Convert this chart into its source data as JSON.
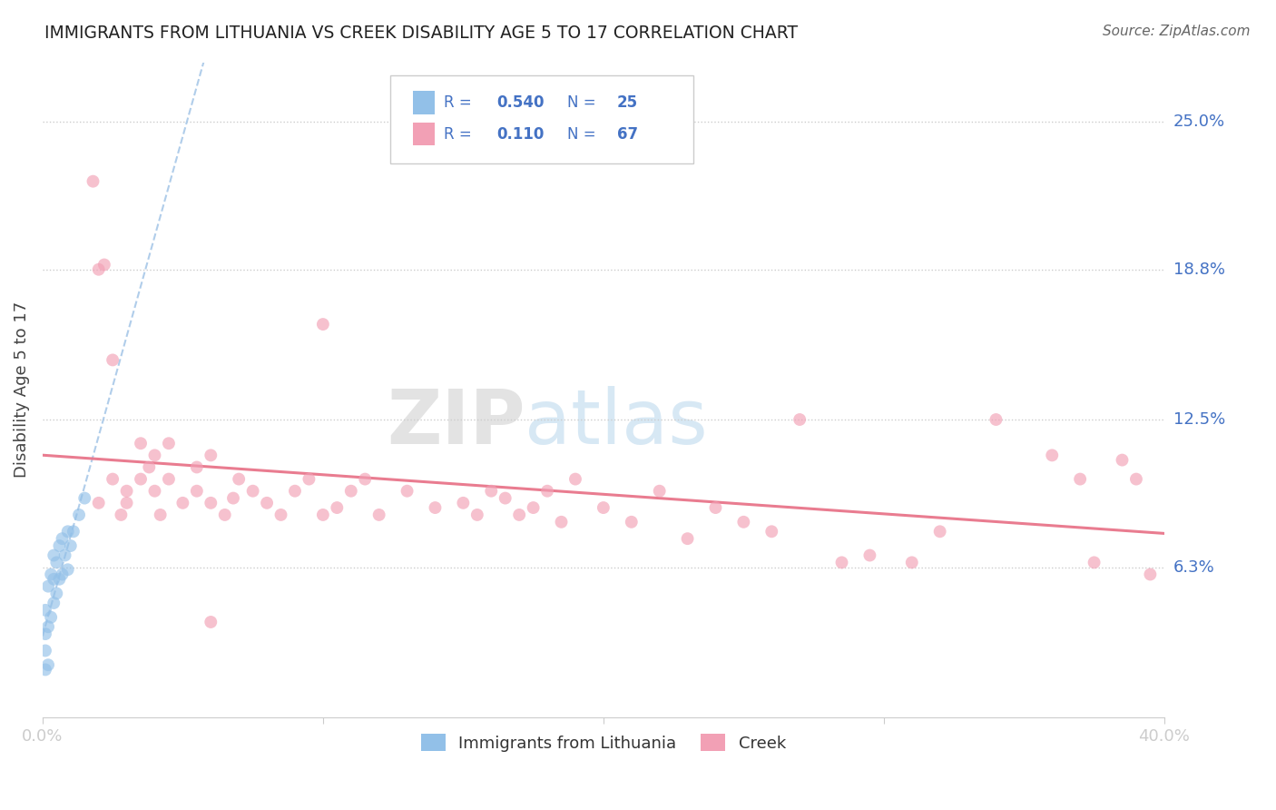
{
  "title": "IMMIGRANTS FROM LITHUANIA VS CREEK DISABILITY AGE 5 TO 17 CORRELATION CHART",
  "source": "Source: ZipAtlas.com",
  "ylabel": "Disability Age 5 to 17",
  "xlim": [
    0.0,
    0.4
  ],
  "ylim": [
    0.0,
    0.275
  ],
  "xticks": [
    0.0,
    0.1,
    0.2,
    0.3,
    0.4
  ],
  "xtick_labels": [
    "0.0%",
    "",
    "",
    "",
    "40.0%"
  ],
  "ytick_labels_right": [
    "6.3%",
    "12.5%",
    "18.8%",
    "25.0%"
  ],
  "ytick_values_right": [
    0.063,
    0.125,
    0.188,
    0.25
  ],
  "r_lithuania": 0.54,
  "n_lithuania": 25,
  "r_creek": 0.11,
  "n_creek": 67,
  "color_lithuania": "#92C0E8",
  "color_creek": "#F2A0B5",
  "trendline_lithuania_color": "#4472C4",
  "trendline_creek_color": "#E8758A",
  "watermark_zip": "ZIP",
  "watermark_atlas": "atlas",
  "lith_x": [
    0.001,
    0.001,
    0.001,
    0.001,
    0.002,
    0.002,
    0.002,
    0.003,
    0.003,
    0.004,
    0.004,
    0.004,
    0.005,
    0.005,
    0.006,
    0.006,
    0.007,
    0.007,
    0.008,
    0.009,
    0.009,
    0.01,
    0.011,
    0.013,
    0.015
  ],
  "lith_y": [
    0.02,
    0.028,
    0.035,
    0.045,
    0.022,
    0.038,
    0.055,
    0.042,
    0.06,
    0.048,
    0.058,
    0.068,
    0.052,
    0.065,
    0.058,
    0.072,
    0.06,
    0.075,
    0.068,
    0.062,
    0.078,
    0.072,
    0.078,
    0.085,
    0.092
  ],
  "creek_x": [
    0.018,
    0.02,
    0.022,
    0.025,
    0.025,
    0.028,
    0.03,
    0.03,
    0.035,
    0.035,
    0.038,
    0.04,
    0.04,
    0.042,
    0.045,
    0.045,
    0.05,
    0.055,
    0.055,
    0.06,
    0.06,
    0.065,
    0.068,
    0.07,
    0.075,
    0.08,
    0.085,
    0.09,
    0.095,
    0.1,
    0.1,
    0.105,
    0.11,
    0.115,
    0.12,
    0.13,
    0.14,
    0.15,
    0.155,
    0.16,
    0.165,
    0.17,
    0.175,
    0.18,
    0.185,
    0.19,
    0.2,
    0.21,
    0.22,
    0.23,
    0.24,
    0.25,
    0.26,
    0.27,
    0.285,
    0.295,
    0.31,
    0.32,
    0.34,
    0.36,
    0.37,
    0.375,
    0.385,
    0.39,
    0.395,
    0.02,
    0.06
  ],
  "creek_y": [
    0.225,
    0.09,
    0.19,
    0.1,
    0.15,
    0.085,
    0.09,
    0.095,
    0.1,
    0.115,
    0.105,
    0.095,
    0.11,
    0.085,
    0.1,
    0.115,
    0.09,
    0.105,
    0.095,
    0.09,
    0.11,
    0.085,
    0.092,
    0.1,
    0.095,
    0.09,
    0.085,
    0.095,
    0.1,
    0.085,
    0.165,
    0.088,
    0.095,
    0.1,
    0.085,
    0.095,
    0.088,
    0.09,
    0.085,
    0.095,
    0.092,
    0.085,
    0.088,
    0.095,
    0.082,
    0.1,
    0.088,
    0.082,
    0.095,
    0.075,
    0.088,
    0.082,
    0.078,
    0.125,
    0.065,
    0.068,
    0.065,
    0.078,
    0.125,
    0.11,
    0.1,
    0.065,
    0.108,
    0.1,
    0.06,
    0.188,
    0.04
  ]
}
